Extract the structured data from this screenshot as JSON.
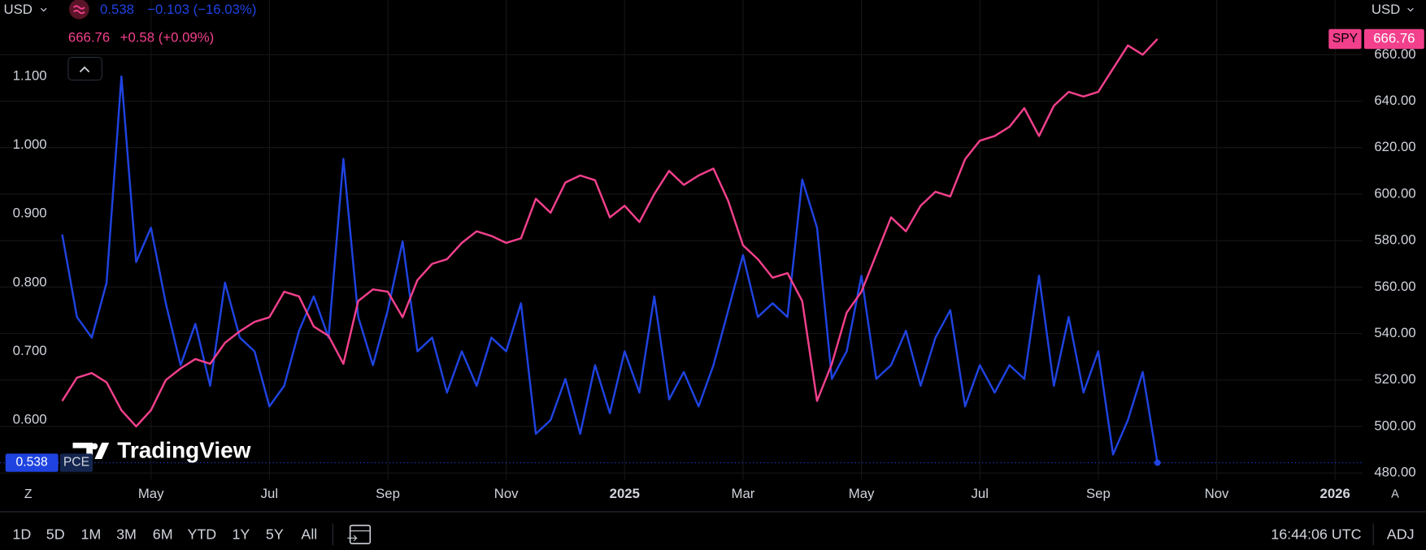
{
  "ui": {
    "currency_left": "USD",
    "currency_right": "USD",
    "legend": [
      {
        "value": "0.538",
        "change": "−0.103 (−16.03%)"
      },
      {
        "value": "666.76",
        "change": "+0.58 (+0.09%)"
      }
    ],
    "watermark": "TradingView",
    "scale_left": "Z",
    "scale_right": "A",
    "ranges": [
      "1D",
      "5D",
      "1M",
      "3M",
      "6M",
      "YTD",
      "1Y",
      "5Y",
      "All"
    ],
    "clock": "16:44:06 UTC",
    "adjust": "ADJ"
  },
  "chart_data": {
    "type": "line",
    "x": [
      2.5,
      2.75,
      3,
      3.25,
      3.5,
      3.75,
      4,
      4.25,
      4.5,
      4.75,
      5,
      5.25,
      5.5,
      5.75,
      6,
      6.25,
      6.5,
      6.75,
      7,
      7.25,
      7.5,
      7.75,
      8,
      8.25,
      8.5,
      8.75,
      9,
      9.25,
      9.5,
      9.75,
      10,
      10.25,
      10.5,
      10.75,
      11,
      11.25,
      11.5,
      11.75,
      12,
      12.25,
      12.5,
      12.75,
      13,
      13.25,
      13.5,
      13.75,
      14,
      14.25,
      14.5,
      14.75,
      15,
      15.25,
      15.5,
      15.75,
      16,
      16.25,
      16.5,
      16.75,
      17,
      17.25,
      17.5,
      17.75,
      18,
      18.25,
      18.5,
      18.75,
      19,
      19.25,
      19.5,
      19.75,
      20,
      20.25,
      20.5,
      20.75,
      21
    ],
    "xlim": [
      1.45,
      24.46
    ],
    "xticks": [
      {
        "value": 4,
        "label": "May"
      },
      {
        "value": 6,
        "label": "Jul"
      },
      {
        "value": 8,
        "label": "Sep"
      },
      {
        "value": 10,
        "label": "Nov"
      },
      {
        "value": 12,
        "label": "2025"
      },
      {
        "value": 14,
        "label": "Mar"
      },
      {
        "value": 16,
        "label": "May"
      },
      {
        "value": 18,
        "label": "Jul"
      },
      {
        "value": 20,
        "label": "Sep"
      },
      {
        "value": 22,
        "label": "Nov"
      },
      {
        "value": 24,
        "label": "2026"
      }
    ],
    "ylim": [
      0.513,
      1.211
    ],
    "yticks": [
      {
        "value": 0.6,
        "label": "0.600"
      },
      {
        "value": 0.7,
        "label": "0.700"
      },
      {
        "value": 0.8,
        "label": "0.800"
      },
      {
        "value": 0.9,
        "label": "0.900"
      },
      {
        "value": 1.0,
        "label": "1.000"
      },
      {
        "value": 1.1,
        "label": "1.100"
      }
    ],
    "y2lim": [
      477,
      683.5
    ],
    "y2ticks": [
      {
        "value": 480,
        "label": "480.00"
      },
      {
        "value": 500,
        "label": "500.00"
      },
      {
        "value": 520,
        "label": "520.00"
      },
      {
        "value": 540,
        "label": "540.00"
      },
      {
        "value": 560,
        "label": "560.00"
      },
      {
        "value": 580,
        "label": "580.00"
      },
      {
        "value": 600,
        "label": "600.00"
      },
      {
        "value": 620,
        "label": "620.00"
      },
      {
        "value": 640,
        "label": "640.00"
      },
      {
        "value": 660,
        "label": "660.00"
      }
    ],
    "grid": true,
    "series": [
      {
        "name": "PCE",
        "color": "#1f43e0",
        "values": [
          0.87,
          0.75,
          0.72,
          0.8,
          1.1,
          0.83,
          0.88,
          0.77,
          0.68,
          0.74,
          0.65,
          0.8,
          0.72,
          0.7,
          0.62,
          0.65,
          0.73,
          0.78,
          0.72,
          0.98,
          0.75,
          0.68,
          0.76,
          0.86,
          0.7,
          0.72,
          0.64,
          0.7,
          0.65,
          0.72,
          0.7,
          0.77,
          0.58,
          0.6,
          0.66,
          0.58,
          0.68,
          0.61,
          0.7,
          0.64,
          0.78,
          0.63,
          0.67,
          0.62,
          0.68,
          0.76,
          0.84,
          0.75,
          0.77,
          0.75,
          0.95,
          0.88,
          0.66,
          0.7,
          0.81,
          0.66,
          0.68,
          0.73,
          0.65,
          0.72,
          0.76,
          0.62,
          0.68,
          0.64,
          0.68,
          0.66,
          0.81,
          0.65,
          0.75,
          0.64,
          0.7,
          0.55,
          0.6,
          0.67,
          0.538
        ]
      },
      {
        "name": "SPY",
        "color": "#f2408c",
        "axis": "y2",
        "values": [
          511,
          521,
          523,
          519,
          507,
          500,
          507,
          520,
          525,
          529,
          527,
          536,
          541,
          545,
          547,
          558,
          556,
          543,
          539,
          527,
          554,
          559,
          558,
          547,
          563,
          570,
          572,
          579,
          584,
          582,
          579,
          581,
          598,
          592,
          605,
          608,
          606,
          590,
          595,
          588,
          600,
          610,
          604,
          608,
          611,
          597,
          578,
          572,
          564,
          566,
          554,
          511,
          527,
          549,
          558,
          574,
          590,
          584,
          595,
          601,
          599,
          615,
          623,
          625,
          629,
          637,
          625,
          638,
          644,
          642,
          644,
          654,
          664,
          660,
          666.76
        ]
      }
    ]
  }
}
